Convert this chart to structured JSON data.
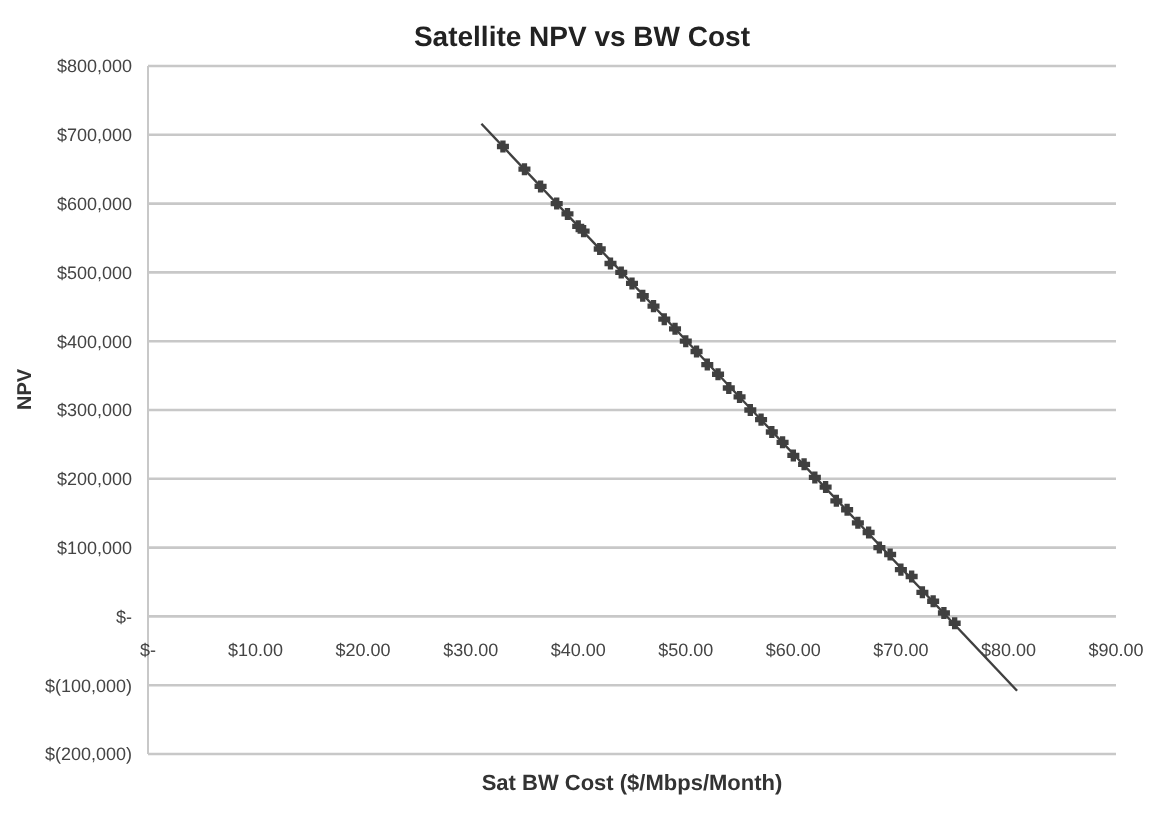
{
  "chart_data": {
    "type": "scatter",
    "title": "Satellite NPV vs BW Cost",
    "xlabel": "Sat BW Cost ($/Mbps/Month)",
    "ylabel": "NPV",
    "xlim": [
      0,
      90
    ],
    "ylim": [
      -200000,
      800000
    ],
    "xticks": [
      {
        "value": 0,
        "label": "$-"
      },
      {
        "value": 10,
        "label": "$10.00"
      },
      {
        "value": 20,
        "label": "$20.00"
      },
      {
        "value": 30,
        "label": "$30.00"
      },
      {
        "value": 40,
        "label": "$40.00"
      },
      {
        "value": 50,
        "label": "$50.00"
      },
      {
        "value": 60,
        "label": "$60.00"
      },
      {
        "value": 70,
        "label": "$70.00"
      },
      {
        "value": 80,
        "label": "$80.00"
      },
      {
        "value": 90,
        "label": "$90.00"
      }
    ],
    "yticks": [
      {
        "value": -200000,
        "label": "$(200,000)"
      },
      {
        "value": -100000,
        "label": "$(100,000)"
      },
      {
        "value": 0,
        "label": "$-"
      },
      {
        "value": 100000,
        "label": "$100,000"
      },
      {
        "value": 200000,
        "label": "$200,000"
      },
      {
        "value": 300000,
        "label": "$300,000"
      },
      {
        "value": 400000,
        "label": "$400,000"
      },
      {
        "value": 500000,
        "label": "$500,000"
      },
      {
        "value": 600000,
        "label": "$600,000"
      },
      {
        "value": 700000,
        "label": "$700,000"
      },
      {
        "value": 800000,
        "label": "$800,000"
      }
    ],
    "grid": "y",
    "legend": false,
    "series": [
      {
        "color": "#404040",
        "marker": "cross",
        "x": [
          33,
          35,
          36.5,
          38,
          39,
          40,
          40.5,
          42,
          43,
          44,
          45,
          46,
          47,
          48,
          49,
          50,
          51,
          52,
          53,
          54,
          55,
          56,
          57,
          58,
          59,
          60,
          61,
          62,
          63,
          64,
          65,
          66,
          67,
          68,
          69,
          70,
          71,
          72,
          73,
          74,
          75
        ],
        "values": [
          683000,
          650000,
          625000,
          600000,
          585000,
          567000,
          560000,
          534000,
          513000,
          500000,
          484000,
          466000,
          451000,
          432000,
          418000,
          400000,
          385000,
          366000,
          352000,
          332000,
          319000,
          300000,
          286000,
          268000,
          253000,
          234000,
          221000,
          202000,
          188000,
          168000,
          155000,
          136000,
          122000,
          100000,
          90000,
          68000,
          58000,
          35000,
          22000,
          5000,
          -10000
        ]
      },
      {
        "type": "line",
        "color": "#404040",
        "x": [
          31,
          80.8
        ],
        "values": [
          716000,
          -108000
        ]
      }
    ]
  }
}
